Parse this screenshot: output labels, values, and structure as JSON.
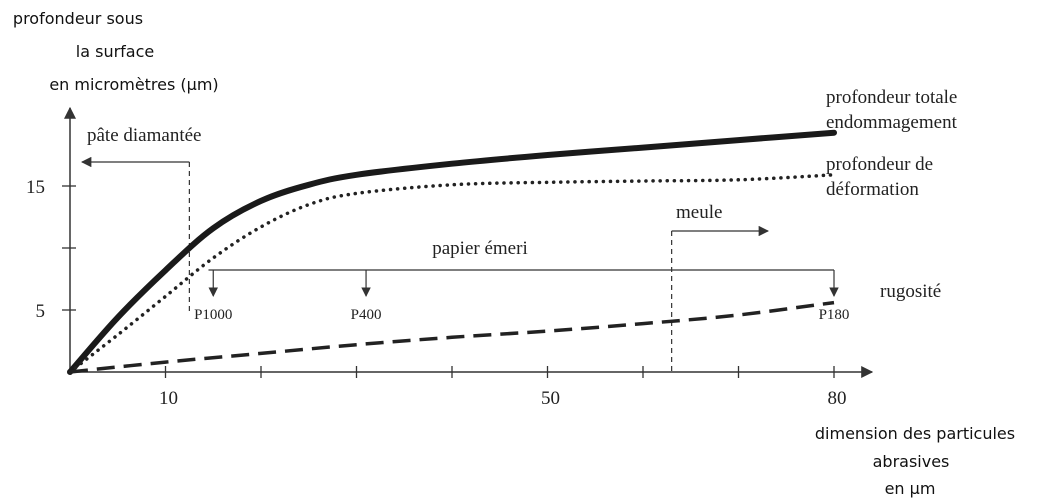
{
  "chart_data": {
    "type": "line",
    "ylabel_lines": [
      "profondeur sous",
      "la surface",
      "en micromètres (µm)"
    ],
    "xlabel_lines": [
      "dimension des particules",
      "abrasives",
      "en µm"
    ],
    "x_ticks": [
      10,
      20,
      30,
      40,
      50,
      60,
      70,
      80
    ],
    "x_tick_labels": [
      {
        "x": 10,
        "text": "10"
      },
      {
        "x": 50,
        "text": "50"
      },
      {
        "x": 80,
        "text": "80"
      }
    ],
    "y_ticks": [
      5,
      10,
      15
    ],
    "y_tick_labels": [
      {
        "y": 5,
        "text": "5"
      },
      {
        "y": 15,
        "text": "15"
      }
    ],
    "xlim": [
      0,
      85
    ],
    "ylim": [
      0,
      21
    ],
    "series": [
      {
        "name": "profondeur totale endommagement",
        "label_lines": [
          "profondeur totale",
          "endommagement"
        ],
        "style": "solid-thick",
        "x": [
          0,
          5,
          10,
          15,
          20,
          25,
          30,
          40,
          50,
          60,
          70,
          80
        ],
        "y": [
          0,
          4.4,
          8.2,
          11.6,
          13.8,
          15.1,
          15.9,
          16.8,
          17.5,
          18.1,
          18.7,
          19.3
        ]
      },
      {
        "name": "profondeur de déformation",
        "label_lines": [
          "profondeur de",
          "déformation"
        ],
        "style": "dotted",
        "x": [
          0,
          5,
          10,
          15,
          20,
          25,
          30,
          40,
          50,
          60,
          70,
          80
        ],
        "y": [
          0,
          3.0,
          6.1,
          9.2,
          11.7,
          13.5,
          14.4,
          15.1,
          15.3,
          15.4,
          15.5,
          15.9
        ]
      },
      {
        "name": "rugosité",
        "label_lines": [
          "rugosité"
        ],
        "style": "dashed",
        "x": [
          0,
          10,
          20,
          30,
          40,
          50,
          60,
          70,
          80
        ],
        "y": [
          0,
          0.8,
          1.5,
          2.2,
          2.8,
          3.3,
          3.9,
          4.6,
          5.6
        ]
      }
    ],
    "annotations": {
      "pate": {
        "label": "pâte diamantée",
        "x": 12.5
      },
      "meule": {
        "label": "meule",
        "x": 63
      },
      "papier": {
        "label": "papier émeri",
        "x_start": 14.5,
        "x_end": 80,
        "marks": [
          {
            "label": "P1000",
            "x": 15
          },
          {
            "label": "P400",
            "x": 31
          },
          {
            "label": "P180",
            "x": 80
          }
        ]
      }
    }
  }
}
